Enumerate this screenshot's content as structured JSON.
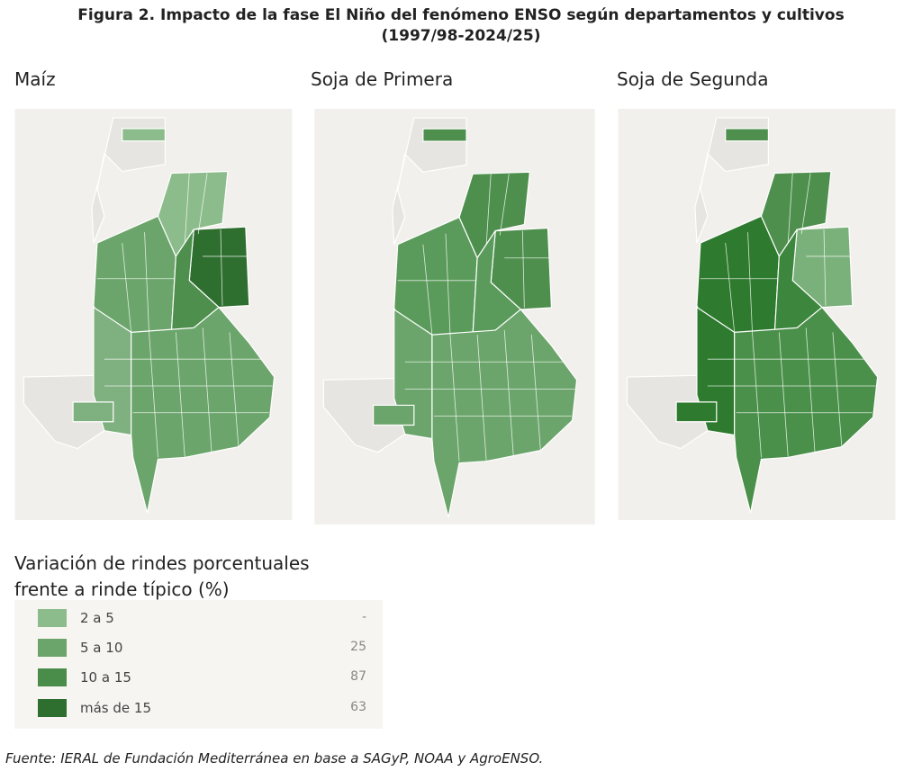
{
  "header": {
    "title": [
      "Figura 2. Impacto de la fase El Niño del fenómeno ENSO según departamentos y cultivos",
      "(1997/98-2024/25)"
    ]
  },
  "maps": [
    {
      "title": "Maíz"
    },
    {
      "title": "Soja de Primera"
    },
    {
      "title": "Soja de Segunda"
    }
  ],
  "legend": {
    "title": [
      "Variación de rindes porcentuales",
      "frente a rinde típico (%)"
    ],
    "items": [
      {
        "label": "2 a 5",
        "count": "-"
      },
      {
        "label": "5 a 10",
        "count": 25
      },
      {
        "label": "10 a 15",
        "count": 87
      },
      {
        "label": "más de 15",
        "count": 63
      }
    ]
  },
  "footer": {
    "source": "Fuente: IERAL de Fundación Mediterránea en base a SAGyP, NOAA y AgroENSO."
  }
}
